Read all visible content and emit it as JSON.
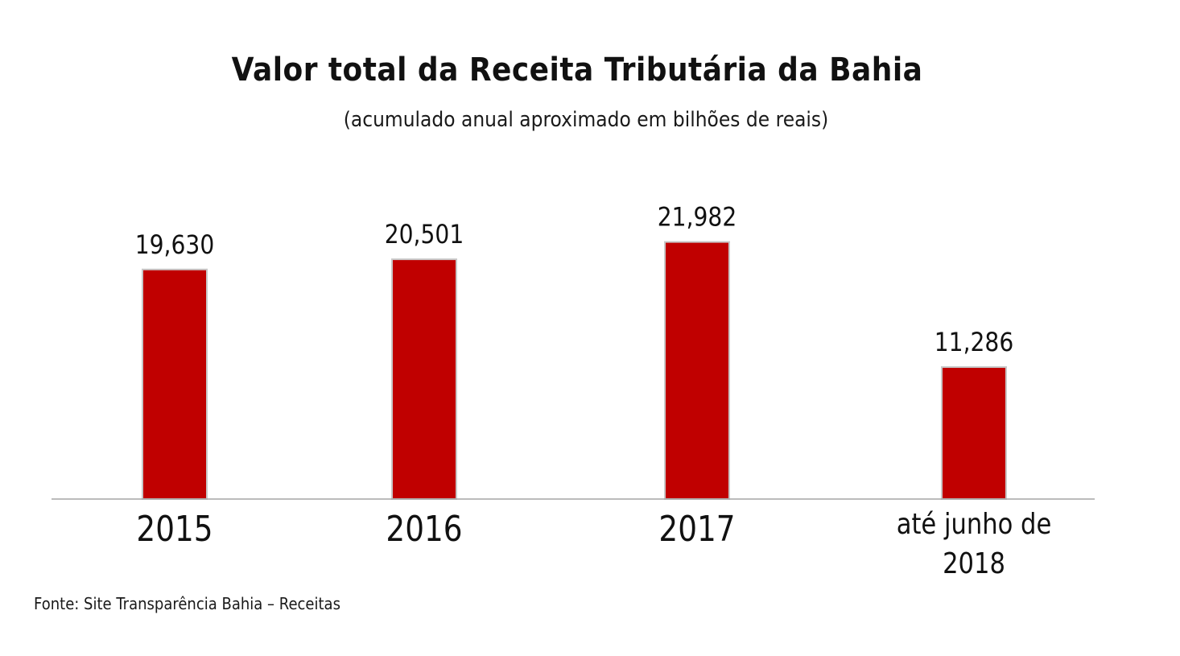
{
  "chart_data": {
    "type": "bar",
    "title": "Valor total da Receita Tributária da Bahia",
    "subtitle": "(acumulado anual aproximado em bilhões de reais)",
    "categories": [
      "2015",
      "2016",
      "2017",
      "até junho de 2018"
    ],
    "category_lines": [
      [
        "2015"
      ],
      [
        "2016"
      ],
      [
        "2017"
      ],
      [
        "até junho de",
        "2018"
      ]
    ],
    "values": [
      19.63,
      20.501,
      21.982,
      11.286
    ],
    "value_labels": [
      "19,630",
      "20,501",
      "21,982",
      "11,286"
    ],
    "xlabel": "",
    "ylabel": "",
    "ylim": [
      0,
      24
    ],
    "grid": false,
    "legend": "none",
    "bar_color": "#c00000",
    "bar_edge_color": "#c8c8c8"
  },
  "source_note": "Fonte: Site Transparência Bahia – Receitas"
}
